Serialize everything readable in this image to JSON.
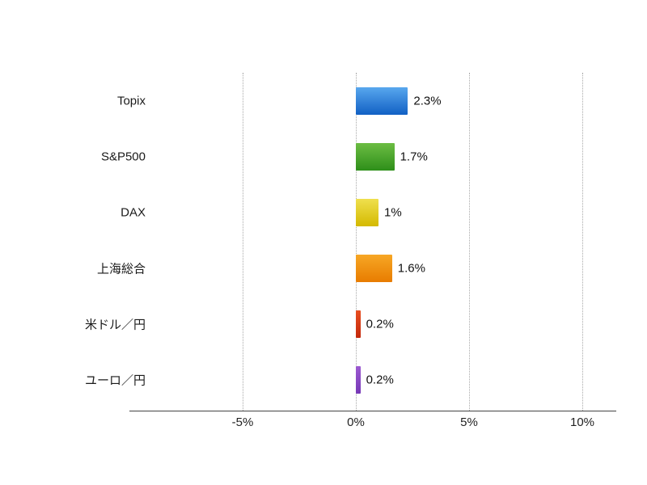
{
  "chart_data": {
    "type": "bar",
    "orientation": "horizontal",
    "title": "",
    "xlabel": "",
    "ylabel": "",
    "categories": [
      "Topix",
      "S&P500",
      "DAX",
      "上海総合",
      "米ドル／円",
      "ユーロ／円"
    ],
    "values": [
      2.3,
      1.7,
      1.0,
      1.6,
      0.2,
      0.2
    ],
    "value_labels": [
      "2.3%",
      "1.7%",
      "1%",
      "1.6%",
      "0.2%",
      "0.2%"
    ],
    "bar_colors": [
      {
        "from": "#58a7ee",
        "to": "#1160c4"
      },
      {
        "from": "#6cbd43",
        "to": "#2e8f1a"
      },
      {
        "from": "#efe04e",
        "to": "#d4b900"
      },
      {
        "from": "#f7a725",
        "to": "#e87c00"
      },
      {
        "from": "#e84e20",
        "to": "#c3280b"
      },
      {
        "from": "#9c5ad1",
        "to": "#7638b6"
      },
      {
        "note": "gradient top-to-bottom glossy excel style"
      }
    ],
    "x_ticks": [
      -5,
      0,
      5,
      10
    ],
    "x_tick_labels": [
      "-5%",
      "0%",
      "5%",
      "10%"
    ],
    "xlim": [
      -10,
      11.5
    ],
    "grid": "vertical-dotted",
    "legend": "none",
    "background": "#ffffff"
  }
}
